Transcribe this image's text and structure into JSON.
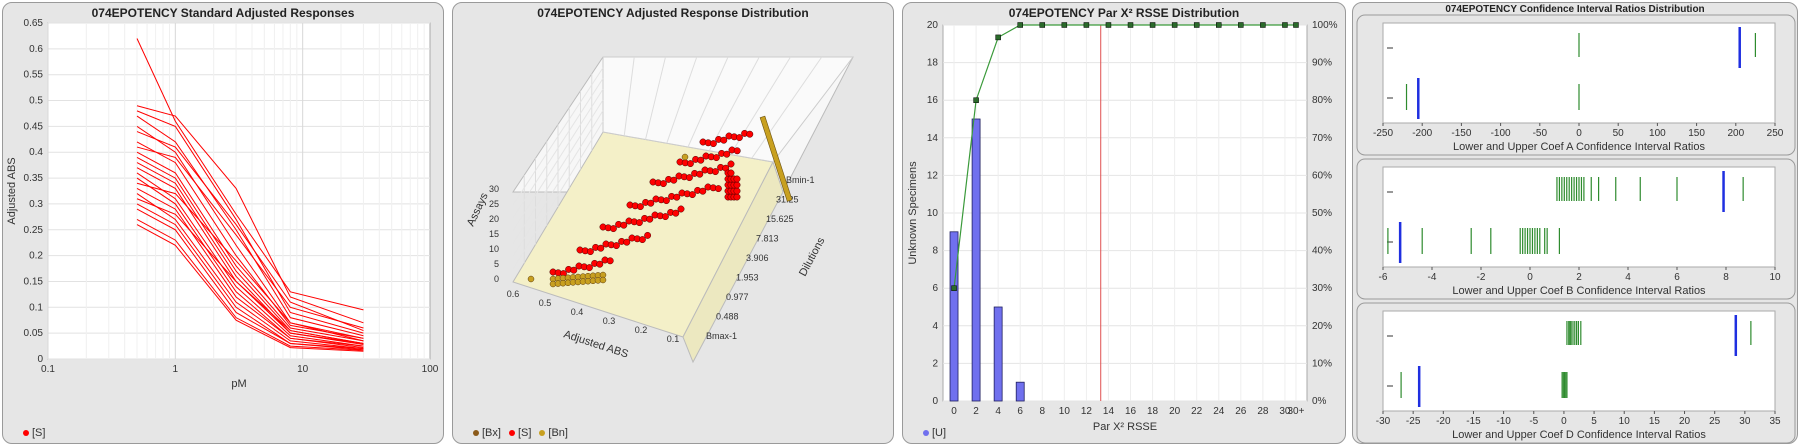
{
  "colors": {
    "red": "#ff0000",
    "blue": "#7070ee",
    "green": "#2e8b2e",
    "gold": "#c8a020",
    "brown": "#8b5a1a",
    "panel": "#e6e6e6",
    "bar_blue": "#1f2fe0",
    "bar_green": "#1a7a1a"
  },
  "panel1": {
    "title": "074EPOTENCY Standard Adjusted Responses",
    "legend": [
      {
        "label": "[S]",
        "color": "#ff0000"
      }
    ]
  },
  "panel2": {
    "title": "074EPOTENCY Adjusted Response Distribution",
    "legend": [
      {
        "label": "[Bx]",
        "color": "#8b5a1a"
      },
      {
        "label": "[S]",
        "color": "#ff0000"
      },
      {
        "label": "[Bn]",
        "color": "#c8a020"
      }
    ]
  },
  "panel3": {
    "title": "074EPOTENCY Par X² RSSE Distribution",
    "legend": [
      {
        "label": "[U]",
        "color": "#7070ee"
      }
    ]
  },
  "panel4": {
    "title": "074EPOTENCY Confidence Interval Ratios Distribution"
  },
  "chart_data": [
    {
      "type": "line",
      "title": "074EPOTENCY Standard Adjusted Responses",
      "xlabel": "pM",
      "ylabel": "Adjusted ABS",
      "xscale": "log",
      "xlim": [
        0.1,
        100
      ],
      "ylim": [
        0,
        0.65
      ],
      "x_ticks": [
        "0.1",
        "1",
        "10",
        "100"
      ],
      "y_ticks": [
        "0",
        "0.05",
        "0.1",
        "0.15",
        "0.2",
        "0.25",
        "0.3",
        "0.35",
        "0.4",
        "0.45",
        "0.5",
        "0.55",
        "0.6",
        "0.65"
      ],
      "x": [
        0.5,
        1,
        3,
        8,
        30
      ],
      "series": [
        {
          "values": [
            0.62,
            0.46,
            0.28,
            0.13,
            0.095
          ]
        },
        {
          "values": [
            0.49,
            0.47,
            0.33,
            0.12,
            0.07
          ]
        },
        {
          "values": [
            0.48,
            0.45,
            0.27,
            0.09,
            0.05
          ]
        },
        {
          "values": [
            0.47,
            0.42,
            0.25,
            0.08,
            0.045
          ]
        },
        {
          "values": [
            0.45,
            0.4,
            0.22,
            0.07,
            0.04
          ]
        },
        {
          "values": [
            0.42,
            0.38,
            0.2,
            0.065,
            0.04
          ]
        },
        {
          "values": [
            0.4,
            0.36,
            0.18,
            0.06,
            0.035
          ]
        },
        {
          "values": [
            0.39,
            0.35,
            0.17,
            0.055,
            0.03
          ]
        },
        {
          "values": [
            0.38,
            0.34,
            0.16,
            0.05,
            0.03
          ]
        },
        {
          "values": [
            0.37,
            0.33,
            0.15,
            0.05,
            0.028
          ]
        },
        {
          "values": [
            0.36,
            0.31,
            0.14,
            0.045,
            0.025
          ]
        },
        {
          "values": [
            0.35,
            0.3,
            0.13,
            0.04,
            0.025
          ]
        },
        {
          "values": [
            0.33,
            0.29,
            0.12,
            0.04,
            0.022
          ]
        },
        {
          "values": [
            0.32,
            0.27,
            0.11,
            0.035,
            0.02
          ]
        },
        {
          "values": [
            0.3,
            0.26,
            0.1,
            0.03,
            0.02
          ]
        },
        {
          "values": [
            0.29,
            0.25,
            0.09,
            0.03,
            0.018
          ]
        },
        {
          "values": [
            0.27,
            0.23,
            0.08,
            0.025,
            0.017
          ]
        },
        {
          "values": [
            0.26,
            0.22,
            0.075,
            0.022,
            0.015
          ]
        },
        {
          "values": [
            0.41,
            0.39,
            0.24,
            0.1,
            0.06
          ]
        },
        {
          "values": [
            0.44,
            0.41,
            0.26,
            0.11,
            0.055
          ]
        },
        {
          "values": [
            0.34,
            0.32,
            0.19,
            0.07,
            0.035
          ]
        },
        {
          "values": [
            0.31,
            0.28,
            0.15,
            0.055,
            0.03
          ]
        }
      ]
    },
    {
      "type": "scatter3d",
      "title": "074EPOTENCY Adjusted Response Distribution",
      "xlabel": "Adjusted ABS",
      "ylabel": "Dilutions",
      "zlabel": "Assays",
      "x_ticks": [
        "0.6",
        "0.5",
        "0.4",
        "0.3",
        "0.2",
        "0.1"
      ],
      "y_ticks": [
        "Bmax-1",
        "0.488",
        "0.977",
        "1.953",
        "3.906",
        "7.813",
        "15.625",
        "31.25",
        "Bmin-1"
      ],
      "z_ticks": [
        "0",
        "5",
        "10",
        "15",
        "20",
        "25",
        "30"
      ]
    },
    {
      "type": "bar",
      "title": "074EPOTENCY Par X² RSSE Distribution",
      "xlabel": "Par X² RSSE",
      "ylabel": "Unknown Specimens",
      "x_ticks": [
        "0",
        "2",
        "4",
        "6",
        "8",
        "10",
        "12",
        "14",
        "16",
        "18",
        "20",
        "22",
        "24",
        "26",
        "28",
        "30",
        "30+"
      ],
      "y_ticks": [
        "0",
        "2",
        "4",
        "6",
        "8",
        "10",
        "12",
        "14",
        "16",
        "18",
        "20"
      ],
      "y2_ticks": [
        "0%",
        "10%",
        "20%",
        "30%",
        "40%",
        "50%",
        "60%",
        "70%",
        "80%",
        "90%",
        "100%"
      ],
      "ylim": [
        0,
        20
      ],
      "categories": [
        "0",
        "2",
        "4",
        "6"
      ],
      "values": [
        9,
        15,
        5,
        1
      ],
      "cumulative_percent": {
        "x": [
          0,
          2,
          4,
          6,
          8,
          10,
          12,
          14,
          16,
          18,
          20,
          22,
          24,
          26,
          28,
          30,
          31
        ],
        "values": [
          30,
          80,
          96.7,
          100,
          100,
          100,
          100,
          100,
          100,
          100,
          100,
          100,
          100,
          100,
          100,
          100,
          100
        ]
      },
      "threshold_x": 13.3
    },
    {
      "type": "strip",
      "title": "Lower and Upper Coef A Confidence Interval Ratios",
      "xlim": [
        -250,
        250
      ],
      "x_ticks": [
        "-250",
        "-200",
        "-150",
        "-100",
        "-50",
        "0",
        "50",
        "100",
        "150",
        "200",
        "250"
      ],
      "upper_blue": [
        205
      ],
      "lower_blue": [
        -205
      ],
      "upper_green": [
        0,
        225
      ],
      "lower_green": [
        -220,
        0
      ]
    },
    {
      "type": "strip",
      "title": "Lower and Upper Coef B Confidence Interval Ratios",
      "xlim": [
        -6,
        10
      ],
      "x_ticks": [
        "-6",
        "-4",
        "-2",
        "0",
        "2",
        "4",
        "6",
        "8",
        "10"
      ],
      "upper_blue": [
        7.9
      ],
      "lower_blue": [
        -5.3
      ],
      "upper_green": [
        1.1,
        1.2,
        1.3,
        1.4,
        1.5,
        1.6,
        1.7,
        1.8,
        1.9,
        2.0,
        2.1,
        2.2,
        2.5,
        2.8,
        3.5,
        4.5,
        6.0,
        8.7
      ],
      "lower_green": [
        -5.8,
        -4.4,
        -2.4,
        -1.6,
        -0.4,
        -0.3,
        -0.2,
        -0.1,
        0.0,
        0.1,
        0.2,
        0.3,
        0.4,
        0.6,
        0.7,
        1.2
      ]
    },
    {
      "type": "strip",
      "title": "Lower and Upper Coef D Confidence Interval Ratios",
      "xlim": [
        -30,
        35
      ],
      "x_ticks": [
        "-30",
        "-25",
        "-20",
        "-15",
        "-10",
        "-5",
        "0",
        "5",
        "10",
        "15",
        "20",
        "25",
        "30",
        "35"
      ],
      "upper_blue": [
        28.5
      ],
      "lower_blue": [
        -24
      ],
      "upper_green": [
        0.5,
        0.8,
        1.0,
        1.2,
        1.5,
        1.8,
        2.1,
        2.4,
        2.8,
        31.0
      ],
      "lower_green": [
        -27,
        -0.3,
        -0.1,
        0.1,
        0.3,
        0.5
      ]
    }
  ]
}
